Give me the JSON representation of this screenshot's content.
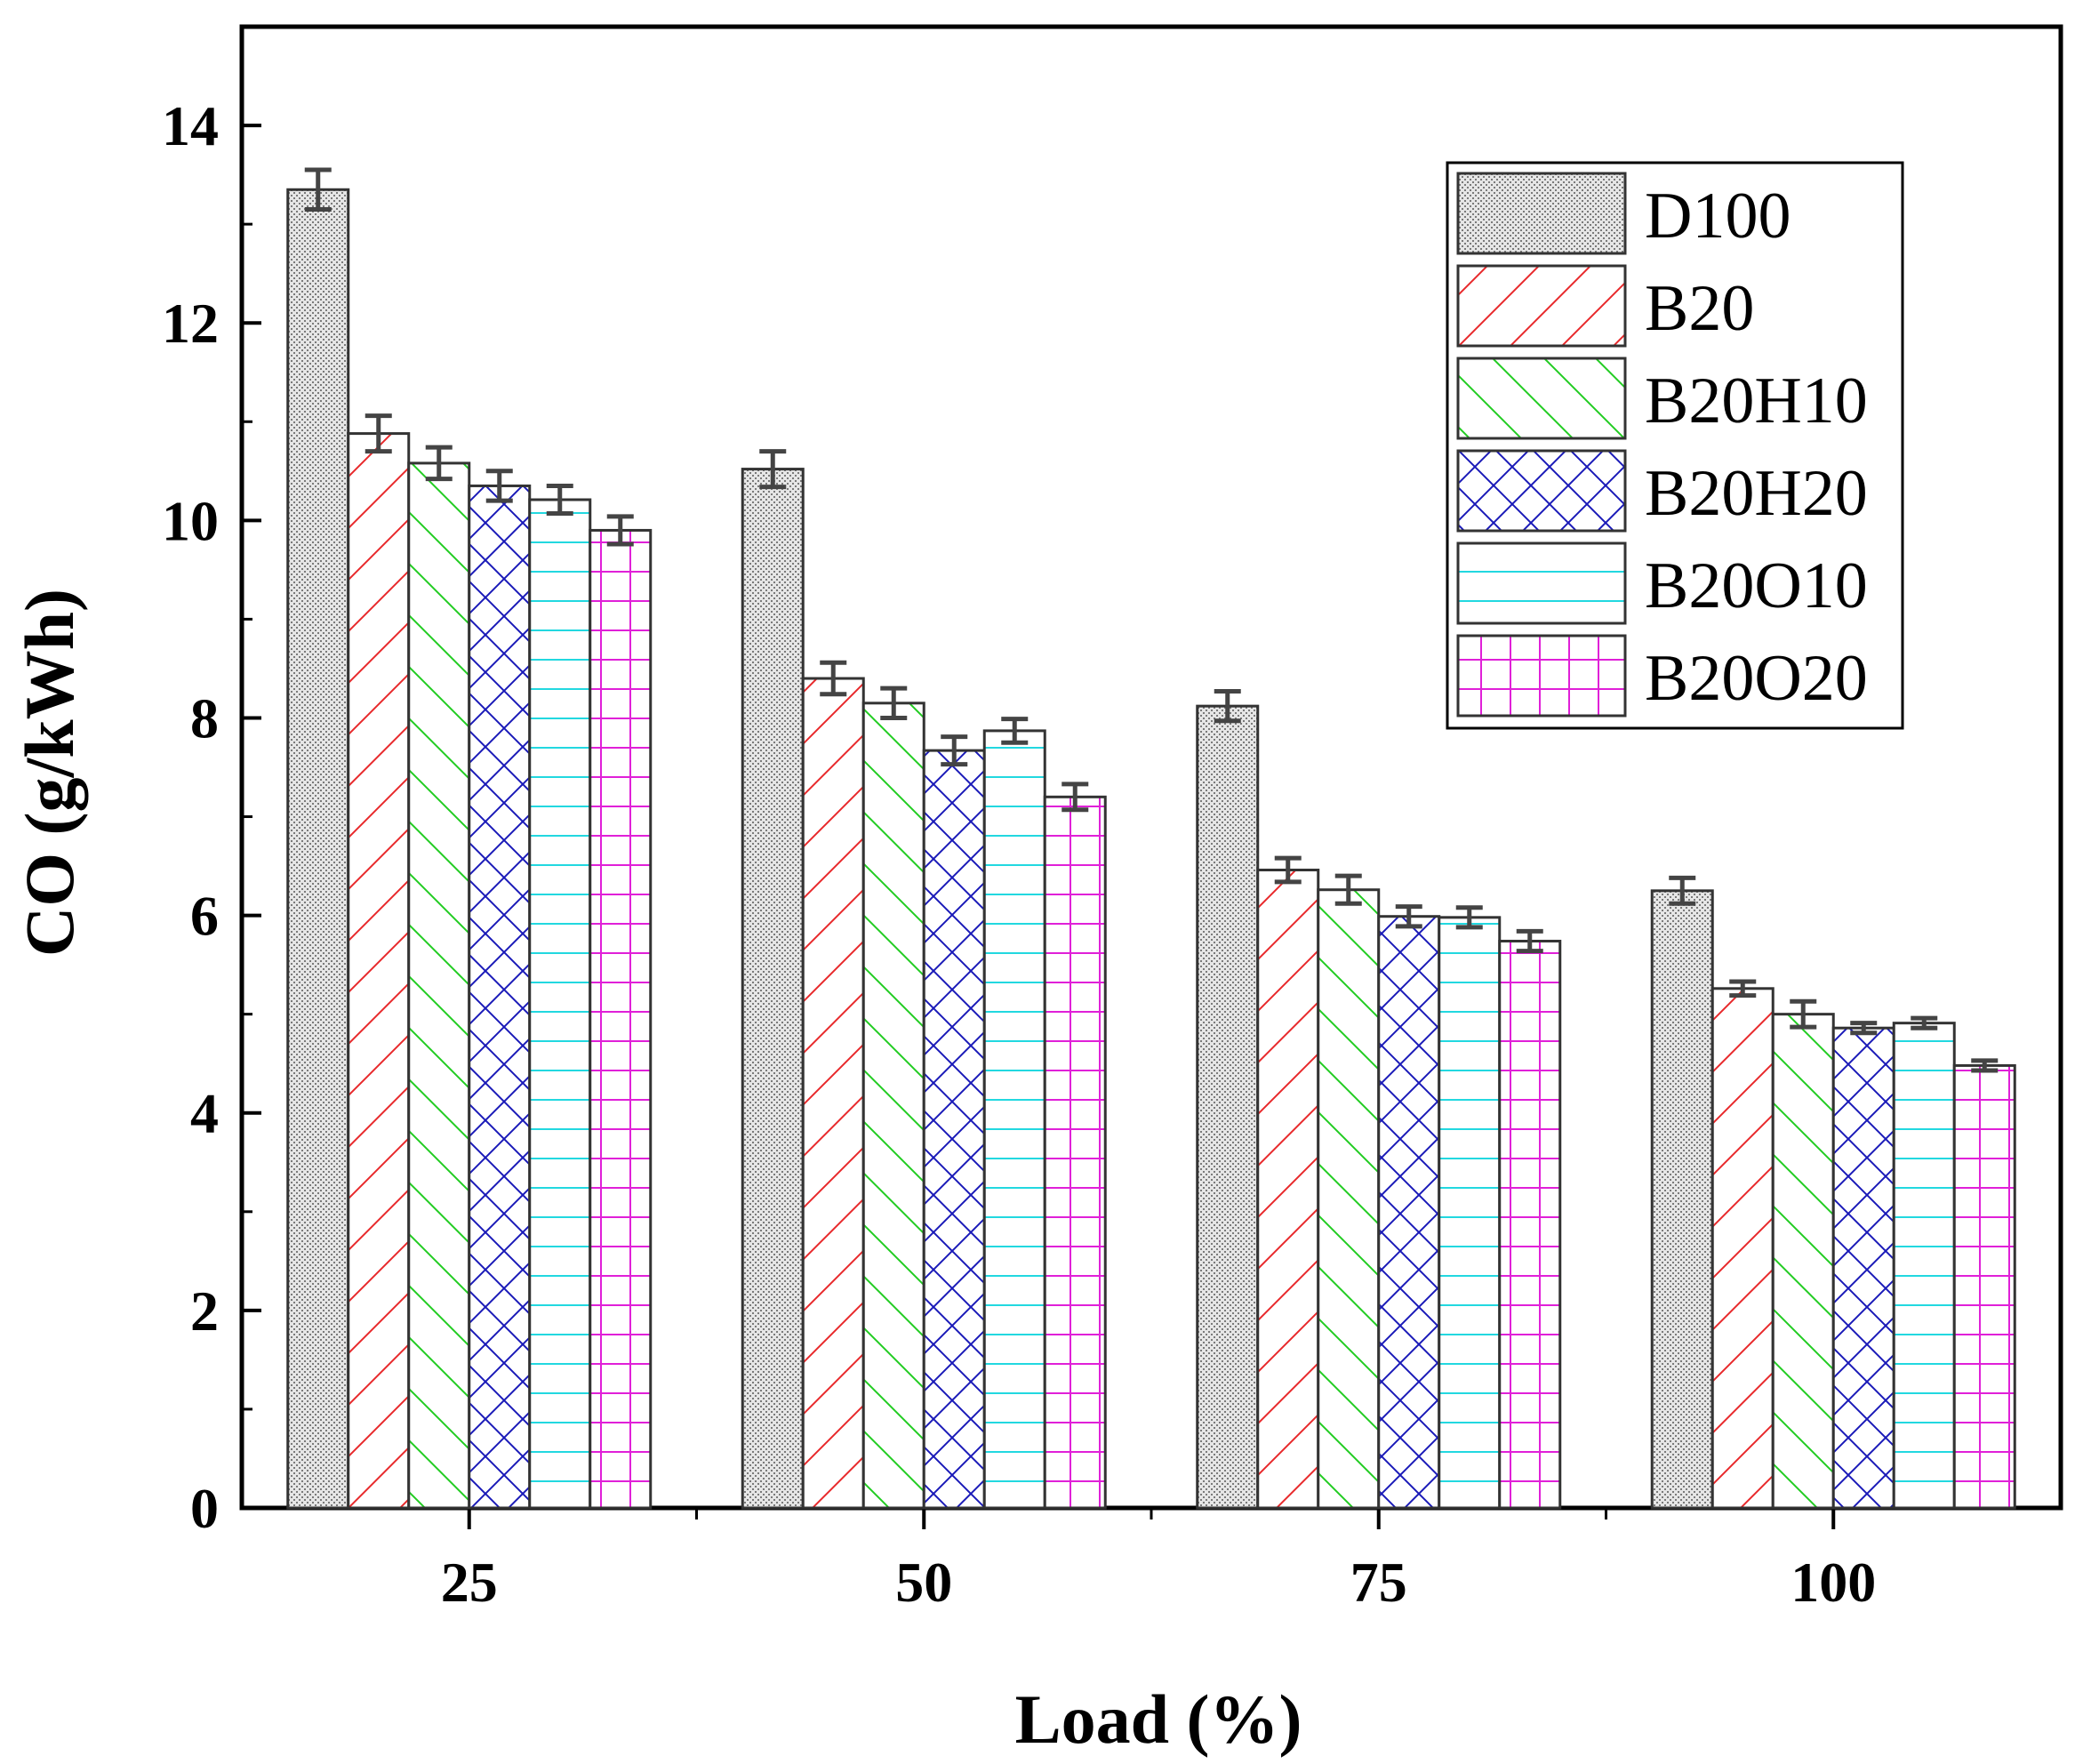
{
  "chart_data": {
    "type": "bar",
    "title": "",
    "xlabel": "Load (%)",
    "ylabel": "CO (g/kWh)",
    "categories": [
      "25",
      "50",
      "75",
      "100"
    ],
    "ylim": [
      0,
      15
    ],
    "yticks": [
      0,
      2,
      4,
      6,
      8,
      10,
      12,
      14
    ],
    "legend_position": "top-right",
    "series": [
      {
        "name": "D100",
        "pattern": "dots",
        "color": "#555555",
        "values": [
          13.35,
          10.52,
          8.12,
          6.25
        ],
        "errors": [
          0.2,
          0.18,
          0.15,
          0.13
        ]
      },
      {
        "name": "B20",
        "pattern": "hatch-forward",
        "color": "#e8292b",
        "values": [
          10.88,
          8.4,
          6.46,
          5.26
        ],
        "errors": [
          0.18,
          0.16,
          0.12,
          0.07
        ]
      },
      {
        "name": "B20H10",
        "pattern": "hatch-backward",
        "color": "#22cc22",
        "values": [
          10.58,
          8.15,
          6.26,
          5.0
        ],
        "errors": [
          0.16,
          0.15,
          0.14,
          0.13
        ]
      },
      {
        "name": "B20H20",
        "pattern": "crosshatch",
        "color": "#1a1ab8",
        "values": [
          10.35,
          7.67,
          5.99,
          4.86
        ],
        "errors": [
          0.15,
          0.14,
          0.1,
          0.05
        ]
      },
      {
        "name": "B20O10",
        "pattern": "horizontal",
        "color": "#22d8e0",
        "values": [
          10.21,
          7.87,
          5.98,
          4.91
        ],
        "errors": [
          0.14,
          0.12,
          0.1,
          0.05
        ]
      },
      {
        "name": "B20O20",
        "pattern": "grid",
        "color": "#e020d8",
        "values": [
          9.9,
          7.2,
          5.74,
          4.48
        ],
        "errors": [
          0.14,
          0.13,
          0.1,
          0.05
        ]
      }
    ]
  }
}
